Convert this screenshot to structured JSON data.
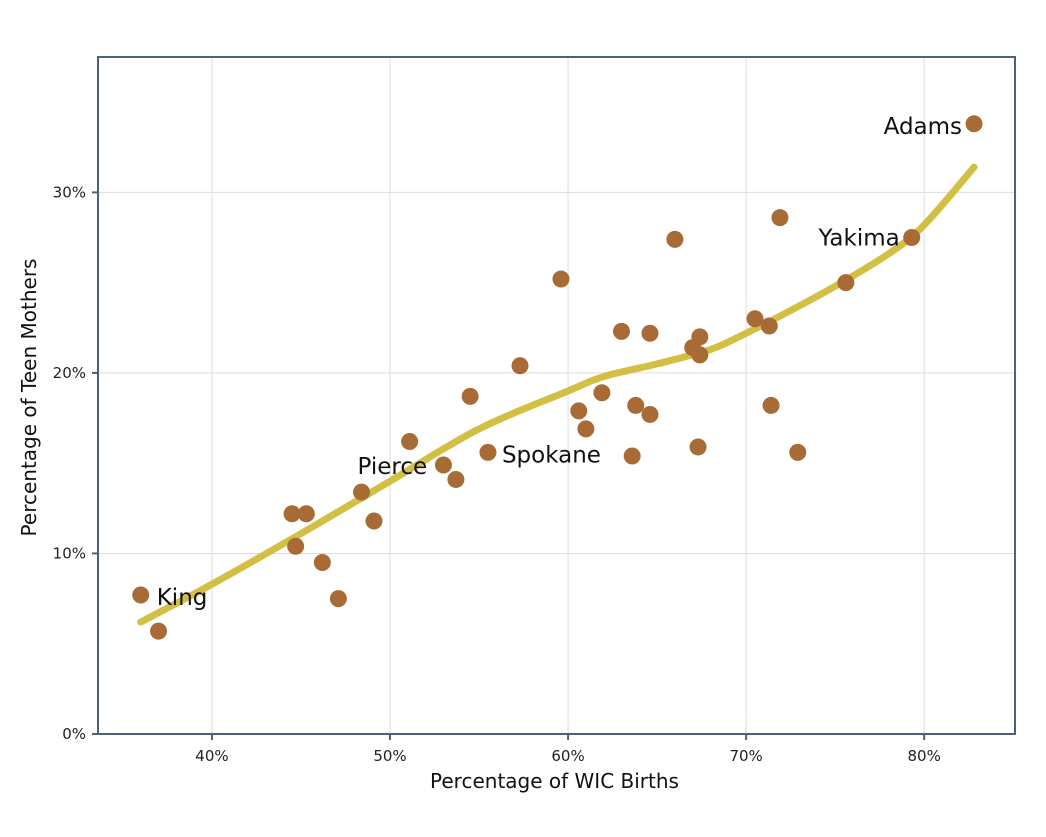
{
  "chart_data": {
    "type": "scatter",
    "title": "",
    "xlabel": "Percentage of WIC Births",
    "ylabel": "Percentage of Teen Mothers",
    "xlim": [
      33.6,
      85.1
    ],
    "ylim": [
      0,
      37.5
    ],
    "x_ticks": [
      40,
      50,
      60,
      70,
      80
    ],
    "y_ticks": [
      0,
      10,
      20,
      30
    ],
    "x_tick_labels": [
      "40%",
      "50%",
      "60%",
      "70%",
      "80%"
    ],
    "y_tick_labels": [
      "0%",
      "10%",
      "20%",
      "30%"
    ],
    "grid": true,
    "colors": {
      "points": "#a96b35",
      "trend": "#d4bf45",
      "axes": "#4a6280",
      "grid": "#dddddd"
    },
    "points": [
      {
        "x": 36.0,
        "y": 7.7,
        "label": "King"
      },
      {
        "x": 37.0,
        "y": 5.7
      },
      {
        "x": 44.5,
        "y": 12.2
      },
      {
        "x": 45.3,
        "y": 12.2
      },
      {
        "x": 44.7,
        "y": 10.4
      },
      {
        "x": 46.2,
        "y": 9.5
      },
      {
        "x": 47.1,
        "y": 7.5
      },
      {
        "x": 48.4,
        "y": 13.4,
        "label": "Pierce"
      },
      {
        "x": 49.1,
        "y": 11.8
      },
      {
        "x": 51.1,
        "y": 16.2
      },
      {
        "x": 53.0,
        "y": 14.9
      },
      {
        "x": 53.7,
        "y": 14.1
      },
      {
        "x": 54.5,
        "y": 18.7
      },
      {
        "x": 55.5,
        "y": 15.6,
        "label": "Spokane"
      },
      {
        "x": 57.3,
        "y": 20.4
      },
      {
        "x": 59.6,
        "y": 25.2
      },
      {
        "x": 60.6,
        "y": 17.9
      },
      {
        "x": 61.0,
        "y": 16.9
      },
      {
        "x": 61.9,
        "y": 18.9
      },
      {
        "x": 63.0,
        "y": 22.3
      },
      {
        "x": 63.6,
        "y": 15.4
      },
      {
        "x": 63.8,
        "y": 18.2
      },
      {
        "x": 64.6,
        "y": 17.7
      },
      {
        "x": 64.6,
        "y": 22.2
      },
      {
        "x": 66.0,
        "y": 27.4
      },
      {
        "x": 67.0,
        "y": 21.4
      },
      {
        "x": 67.4,
        "y": 22.0
      },
      {
        "x": 67.4,
        "y": 21.0
      },
      {
        "x": 67.3,
        "y": 15.9
      },
      {
        "x": 70.5,
        "y": 23.0
      },
      {
        "x": 71.3,
        "y": 22.6
      },
      {
        "x": 71.4,
        "y": 18.2
      },
      {
        "x": 71.9,
        "y": 28.6
      },
      {
        "x": 72.9,
        "y": 15.6
      },
      {
        "x": 75.6,
        "y": 25.0
      },
      {
        "x": 79.3,
        "y": 27.5,
        "label": "Yakima"
      },
      {
        "x": 82.8,
        "y": 33.8,
        "label": "Adams"
      }
    ],
    "trend_line": [
      {
        "x": 36.0,
        "y": 6.2
      },
      {
        "x": 40.0,
        "y": 8.3
      },
      {
        "x": 45.0,
        "y": 11.1
      },
      {
        "x": 50.0,
        "y": 14.0
      },
      {
        "x": 55.0,
        "y": 16.9
      },
      {
        "x": 60.0,
        "y": 19.0
      },
      {
        "x": 62.0,
        "y": 19.8
      },
      {
        "x": 65.0,
        "y": 20.5
      },
      {
        "x": 68.0,
        "y": 21.3
      },
      {
        "x": 70.0,
        "y": 22.2
      },
      {
        "x": 72.0,
        "y": 23.2
      },
      {
        "x": 75.0,
        "y": 24.8
      },
      {
        "x": 78.0,
        "y": 26.6
      },
      {
        "x": 80.0,
        "y": 28.2
      },
      {
        "x": 82.8,
        "y": 31.4
      }
    ]
  }
}
